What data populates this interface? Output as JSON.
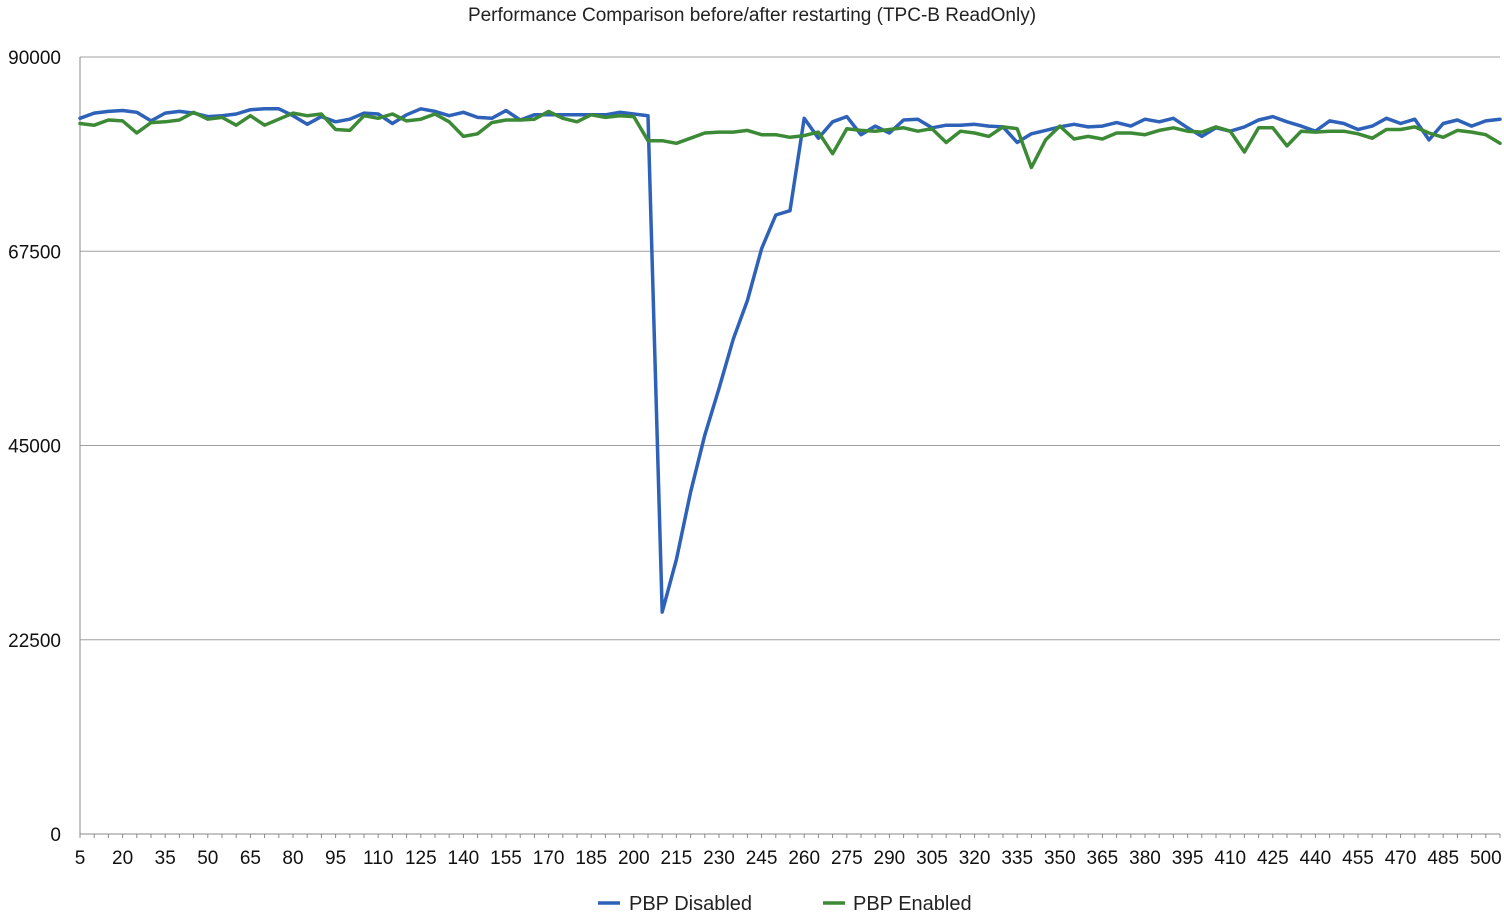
{
  "chart_data": {
    "type": "line",
    "title": "Performance Comparison before/after restarting (TPC-B ReadOnly)",
    "xlabel": "",
    "ylabel": "",
    "ylim": [
      0,
      90000
    ],
    "yticks": [
      0,
      22500,
      45000,
      67500,
      90000
    ],
    "grid": "horizontal",
    "legend_position": "bottom",
    "x": [
      5,
      10,
      15,
      20,
      25,
      30,
      35,
      40,
      45,
      50,
      55,
      60,
      65,
      70,
      75,
      80,
      85,
      90,
      95,
      100,
      105,
      110,
      115,
      120,
      125,
      130,
      135,
      140,
      145,
      150,
      155,
      160,
      165,
      170,
      175,
      180,
      185,
      190,
      195,
      200,
      205,
      210,
      215,
      220,
      225,
      230,
      235,
      240,
      245,
      250,
      255,
      260,
      265,
      270,
      275,
      280,
      285,
      290,
      295,
      300,
      305,
      310,
      315,
      320,
      325,
      330,
      335,
      340,
      345,
      350,
      355,
      360,
      365,
      370,
      375,
      380,
      385,
      390,
      395,
      400,
      405,
      410,
      415,
      420,
      425,
      430,
      435,
      440,
      445,
      450,
      455,
      460,
      465,
      470,
      475,
      480,
      485,
      490,
      495,
      500,
      505
    ],
    "xtick_labels": [
      "5",
      "20",
      "35",
      "50",
      "65",
      "80",
      "95",
      "110",
      "125",
      "140",
      "155",
      "170",
      "185",
      "200",
      "215",
      "230",
      "245",
      "260",
      "275",
      "290",
      "305",
      "320",
      "335",
      "350",
      "365",
      "380",
      "395",
      "410",
      "425",
      "440",
      "455",
      "470",
      "485",
      "500"
    ],
    "series": [
      {
        "name": "PBP Disabled",
        "color": "#2e62b9",
        "values": [
          82900,
          83500,
          83700,
          83800,
          83600,
          82600,
          83500,
          83700,
          83500,
          83100,
          83200,
          83400,
          83900,
          84000,
          84000,
          83200,
          82200,
          83100,
          82500,
          82800,
          83500,
          83400,
          82300,
          83300,
          84000,
          83700,
          83200,
          83600,
          83000,
          82900,
          83800,
          82700,
          83300,
          83300,
          83300,
          83300,
          83300,
          83300,
          83600,
          83400,
          83200,
          25700,
          31800,
          39600,
          46200,
          51600,
          57300,
          61800,
          67800,
          71700,
          72200,
          82900,
          80600,
          82500,
          83100,
          81000,
          82000,
          81200,
          82700,
          82800,
          81800,
          82100,
          82100,
          82200,
          82000,
          81900,
          80100,
          81100,
          81500,
          81900,
          82200,
          81900,
          82000,
          82400,
          82000,
          82800,
          82500,
          82900,
          81800,
          80800,
          81800,
          81400,
          81900,
          82700,
          83100,
          82500,
          82000,
          81400,
          82600,
          82300,
          81600,
          82000,
          82900,
          82300,
          82800,
          80400,
          82300,
          82700,
          82000,
          82600,
          82800
        ]
      },
      {
        "name": "PBP Enabled",
        "color": "#3d8a36",
        "values": [
          82300,
          82100,
          82700,
          82600,
          81200,
          82400,
          82500,
          82700,
          83600,
          82800,
          83000,
          82100,
          83200,
          82100,
          82800,
          83500,
          83200,
          83400,
          81600,
          81500,
          83200,
          82900,
          83400,
          82600,
          82800,
          83400,
          82500,
          80800,
          81100,
          82400,
          82700,
          82700,
          82800,
          83700,
          82900,
          82500,
          83300,
          83000,
          83200,
          83100,
          80300,
          80300,
          80000,
          80600,
          81200,
          81300,
          81300,
          81500,
          81000,
          81000,
          80700,
          80900,
          81300,
          78800,
          81700,
          81500,
          81400,
          81600,
          81800,
          81400,
          81700,
          80100,
          81400,
          81200,
          80800,
          81900,
          81700,
          77200,
          80400,
          82000,
          80500,
          80800,
          80500,
          81200,
          81200,
          81000,
          81500,
          81800,
          81400,
          81300,
          81900,
          81400,
          79000,
          81800,
          81800,
          79700,
          81400,
          81300,
          81400,
          81400,
          81100,
          80600,
          81600,
          81600,
          81900,
          81200,
          80700,
          81500,
          81300,
          81000,
          80000
        ]
      }
    ]
  }
}
